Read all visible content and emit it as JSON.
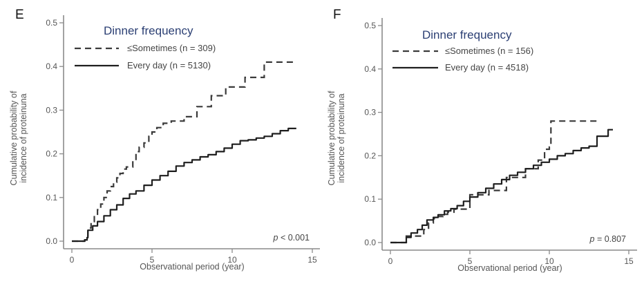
{
  "chart_data": [
    {
      "type": "line",
      "panel": "E",
      "title": "",
      "legend_title": "Dinner frequency",
      "xlabel": "Observational period (year)",
      "ylabel": "Cumulative probability of incidence of proteinuna",
      "xlim": [
        0,
        15
      ],
      "ylim": [
        0,
        0.5
      ],
      "xticks": [
        0,
        5,
        10,
        15
      ],
      "yticks": [
        0.0,
        0.1,
        0.2,
        0.3,
        0.4,
        0.5
      ],
      "ytick_labels": [
        "0.0",
        "0.1",
        "0.2",
        "0.3",
        "0.4",
        "0.5"
      ],
      "xtick_labels": [
        "0",
        "5",
        "10",
        "15"
      ],
      "grid": false,
      "legend_position": "top-left",
      "annotation": "p < 0.001",
      "annotation_prefix": "p",
      "annotation_rest": " < 0.001",
      "series": [
        {
          "name": "≤Sometimes (n = 309)",
          "style": "dashed",
          "x": [
            0,
            0.5,
            0.8,
            0.95,
            1.0,
            1.2,
            1.4,
            1.6,
            1.8,
            2.0,
            2.2,
            2.4,
            2.6,
            2.8,
            3.0,
            3.2,
            3.4,
            3.6,
            3.8,
            4.0,
            4.2,
            4.5,
            4.8,
            5.0,
            5.3,
            5.7,
            6.2,
            7.0,
            7.8,
            8.7,
            9.6,
            10.8,
            11.8,
            12.0,
            13.9
          ],
          "y": [
            0,
            0,
            0.003,
            0.01,
            0.03,
            0.045,
            0.06,
            0.072,
            0.085,
            0.1,
            0.115,
            0.125,
            0.135,
            0.145,
            0.155,
            0.165,
            0.17,
            0.17,
            0.185,
            0.205,
            0.215,
            0.225,
            0.24,
            0.25,
            0.26,
            0.27,
            0.275,
            0.285,
            0.308,
            0.333,
            0.353,
            0.375,
            0.375,
            0.41,
            0.41
          ]
        },
        {
          "name": "Every day (n = 5130)",
          "style": "solid",
          "x": [
            0,
            0.5,
            0.8,
            0.95,
            1.0,
            1.3,
            1.6,
            2.0,
            2.4,
            2.8,
            3.2,
            3.6,
            4.0,
            4.5,
            5.0,
            5.5,
            6.0,
            6.5,
            7.0,
            7.5,
            8.0,
            8.5,
            9.0,
            9.5,
            10.0,
            10.5,
            11.0,
            11.5,
            12.0,
            12.5,
            13.0,
            13.5,
            14.0
          ],
          "y": [
            0,
            0,
            0.003,
            0.008,
            0.025,
            0.035,
            0.045,
            0.058,
            0.072,
            0.083,
            0.098,
            0.108,
            0.115,
            0.128,
            0.14,
            0.15,
            0.16,
            0.172,
            0.18,
            0.186,
            0.193,
            0.198,
            0.205,
            0.213,
            0.222,
            0.23,
            0.232,
            0.236,
            0.24,
            0.246,
            0.253,
            0.258,
            0.258
          ]
        }
      ]
    },
    {
      "type": "line",
      "panel": "F",
      "title": "",
      "legend_title": "Dinner frequency",
      "xlabel": "Observational period (year)",
      "ylabel": "Cumulative probability of incidence of proteinuna",
      "xlim": [
        0,
        15
      ],
      "ylim": [
        0,
        0.5
      ],
      "xticks": [
        0,
        5,
        10,
        15
      ],
      "yticks": [
        0.0,
        0.1,
        0.2,
        0.3,
        0.4,
        0.5
      ],
      "ytick_labels": [
        "0.0",
        "0.1",
        "0.2",
        "0.3",
        "0.4",
        "0.5"
      ],
      "xtick_labels": [
        "0",
        "5",
        "10",
        "15"
      ],
      "grid": false,
      "legend_position": "top-left",
      "annotation": "p = 0.807",
      "annotation_prefix": "p",
      "annotation_rest": " = 0.807",
      "series": [
        {
          "name": "≤Sometimes (n = 156)",
          "style": "dashed",
          "x": [
            0,
            0.8,
            1.0,
            1.8,
            2.1,
            2.4,
            2.7,
            3.0,
            3.3,
            3.6,
            4.0,
            5.0,
            5.0,
            5.7,
            6.2,
            7.0,
            7.3,
            8.0,
            8.5,
            8.9,
            9.3,
            9.7,
            10.0,
            10.1,
            13.1
          ],
          "y": [
            0,
            0,
            0.015,
            0.015,
            0.03,
            0.045,
            0.055,
            0.06,
            0.065,
            0.07,
            0.077,
            0.077,
            0.11,
            0.11,
            0.12,
            0.12,
            0.15,
            0.15,
            0.17,
            0.17,
            0.19,
            0.215,
            0.22,
            0.28,
            0.28
          ]
        },
        {
          "name": "Every day (n = 4518)",
          "style": "solid",
          "x": [
            0,
            0.8,
            1.0,
            1.3,
            1.7,
            2.0,
            2.3,
            2.7,
            3.0,
            3.4,
            3.8,
            4.2,
            4.6,
            5.0,
            5.5,
            6.0,
            6.5,
            7.0,
            7.5,
            8.0,
            8.5,
            9.0,
            9.5,
            10.0,
            10.5,
            11.0,
            11.5,
            12.0,
            12.5,
            12.8,
            13.0,
            13.4,
            13.7,
            14.0
          ],
          "y": [
            0,
            0,
            0.012,
            0.022,
            0.03,
            0.04,
            0.052,
            0.058,
            0.064,
            0.073,
            0.078,
            0.085,
            0.095,
            0.105,
            0.115,
            0.125,
            0.135,
            0.145,
            0.155,
            0.162,
            0.17,
            0.178,
            0.185,
            0.192,
            0.2,
            0.205,
            0.212,
            0.218,
            0.222,
            0.222,
            0.245,
            0.245,
            0.26,
            0.26
          ]
        }
      ]
    }
  ]
}
